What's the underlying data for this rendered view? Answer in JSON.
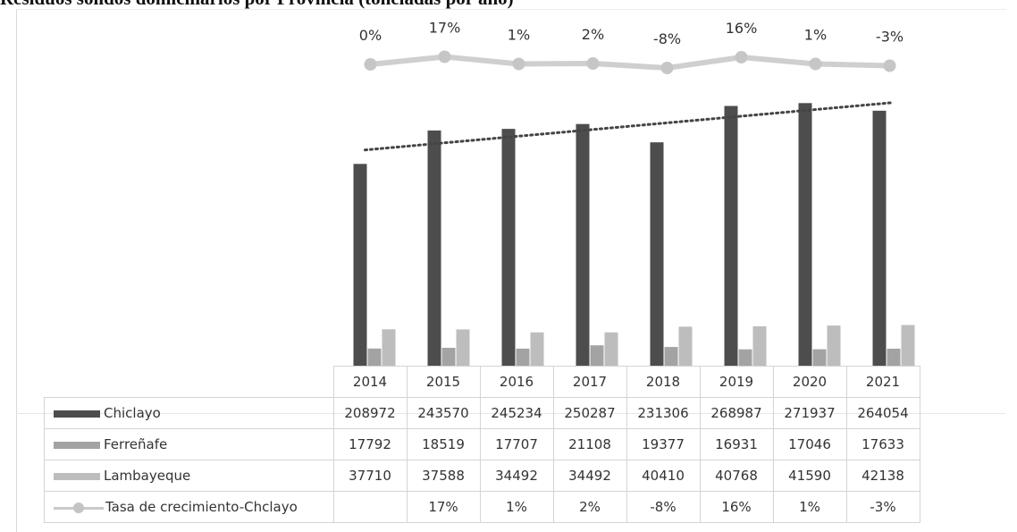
{
  "page": {
    "title": "Residuos sólidos domiciliarios por Provincia (toneladas por año)"
  },
  "chart_data": {
    "type": "bar",
    "categories": [
      "2014",
      "2015",
      "2016",
      "2017",
      "2018",
      "2019",
      "2020",
      "2021"
    ],
    "series": [
      {
        "name": "Chiclayo",
        "values": [
          208972,
          243570,
          245234,
          250287,
          231306,
          268987,
          271937,
          264054
        ],
        "color": "#4d4d4d"
      },
      {
        "name": "Ferreñafe",
        "values": [
          17792,
          18519,
          17707,
          21108,
          19377,
          16931,
          17046,
          17633
        ],
        "color": "#a3a3a3"
      },
      {
        "name": "Lambayeque",
        "values": [
          37710,
          37588,
          34492,
          34492,
          40410,
          40768,
          41590,
          42138
        ],
        "color": "#bdbdbd"
      },
      {
        "name": "Tasa de crecimiento-Chclayo",
        "type": "line",
        "color": "#cfcfcf",
        "values": [
          0,
          17,
          1,
          2,
          -8,
          16,
          1,
          -3
        ],
        "labels": [
          "0%",
          "17%",
          "1%",
          "2%",
          "-8%",
          "16%",
          "1%",
          "-3%"
        ],
        "table_labels": [
          "",
          "17%",
          "1%",
          "2%",
          "-8%",
          "16%",
          "1%",
          "-3%"
        ]
      }
    ],
    "trendline": {
      "series": "Chiclayo",
      "style": "dotted"
    },
    "ylim": [
      0,
      300000
    ],
    "legend": "data-table"
  }
}
